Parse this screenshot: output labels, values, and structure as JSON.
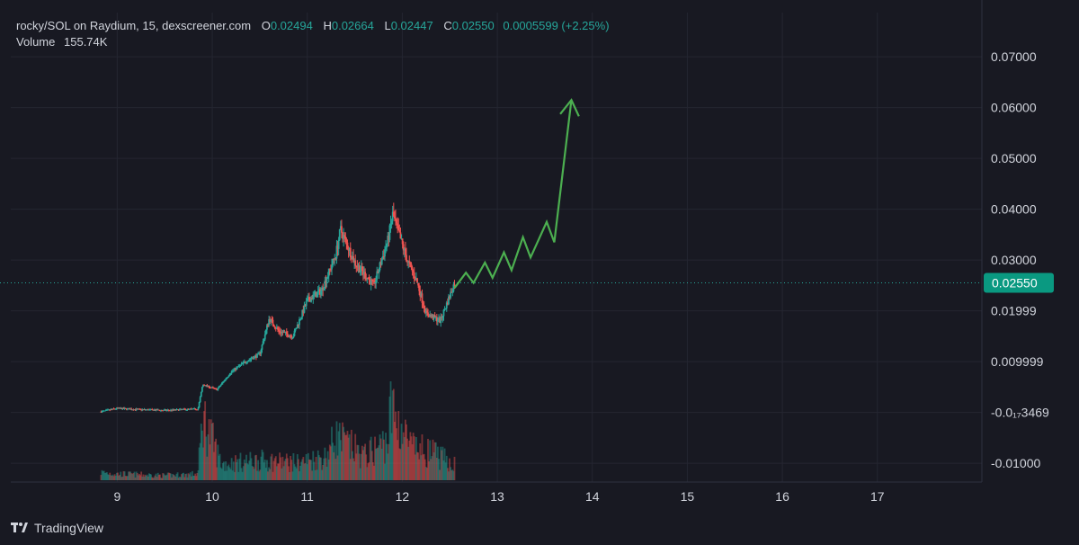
{
  "legend": {
    "symbol": "rocky/SOL on Raydium, 15, dexscreener.com",
    "o_label": "O",
    "o_value": "0.02494",
    "h_label": "H",
    "h_value": "0.02664",
    "l_label": "L",
    "l_value": "0.02447",
    "c_label": "C",
    "c_value": "0.02550",
    "change": "0.0005599 (+2.25%)",
    "volume_label": "Volume",
    "volume_value": "155.74K"
  },
  "footer": {
    "brand": "TradingView",
    "logo_icon": "tradingview-logo-icon"
  },
  "colors": {
    "background": "#181922",
    "grid": "#242631",
    "up": "#26a69a",
    "down": "#ef5350",
    "arrow": "#4caf50",
    "last_price_bg": "#0a9981",
    "axis_text": "#d1d4dc"
  },
  "chart_data": {
    "type": "candlestick",
    "x_tick_labels": [
      "9",
      "10",
      "11",
      "12",
      "13",
      "14",
      "15",
      "16",
      "17"
    ],
    "x_ticks": [
      9,
      10,
      11,
      12,
      13,
      14,
      15,
      16,
      17
    ],
    "xlim": [
      7.88,
      18.1
    ],
    "y_tick_labels": [
      "0.07000",
      "0.06000",
      "0.05000",
      "0.04000",
      "0.03000",
      "0.01999",
      "0.009999",
      "-0.0₁₇3469",
      "-0.01000"
    ],
    "y_ticks": [
      0.07,
      0.06,
      0.05,
      0.04,
      0.03,
      0.01999,
      0.009999,
      0,
      -0.01
    ],
    "ylim": [
      -0.0137,
      0.0787
    ],
    "last_price": 0.0255,
    "last_price_label": "0.02550",
    "price_path": [
      [
        8.83,
        0.00015
      ],
      [
        9.0,
        0.0008
      ],
      [
        9.2,
        0.0006
      ],
      [
        9.5,
        0.0004
      ],
      [
        9.85,
        0.0007
      ],
      [
        9.9,
        0.0055
      ],
      [
        10.05,
        0.0045
      ],
      [
        10.2,
        0.008
      ],
      [
        10.35,
        0.01
      ],
      [
        10.5,
        0.0115
      ],
      [
        10.6,
        0.0185
      ],
      [
        10.7,
        0.016
      ],
      [
        10.85,
        0.015
      ],
      [
        11.0,
        0.022
      ],
      [
        11.15,
        0.024
      ],
      [
        11.3,
        0.031
      ],
      [
        11.35,
        0.036
      ],
      [
        11.5,
        0.0295
      ],
      [
        11.7,
        0.025
      ],
      [
        11.85,
        0.034
      ],
      [
        11.9,
        0.039
      ],
      [
        12.05,
        0.03
      ],
      [
        12.15,
        0.026
      ],
      [
        12.25,
        0.0195
      ],
      [
        12.4,
        0.018
      ],
      [
        12.55,
        0.0255
      ]
    ],
    "volume_path": [
      [
        8.83,
        0.1
      ],
      [
        9.0,
        0.08
      ],
      [
        9.5,
        0.06
      ],
      [
        9.85,
        0.08
      ],
      [
        9.9,
        0.8
      ],
      [
        10.1,
        0.2
      ],
      [
        10.5,
        0.25
      ],
      [
        10.9,
        0.22
      ],
      [
        11.2,
        0.3
      ],
      [
        11.3,
        0.55
      ],
      [
        11.6,
        0.3
      ],
      [
        11.85,
        0.5
      ],
      [
        11.88,
        0.9
      ],
      [
        12.1,
        0.4
      ],
      [
        12.3,
        0.35
      ],
      [
        12.55,
        0.2
      ]
    ],
    "projection_arrow": [
      [
        12.55,
        0.0245
      ],
      [
        12.67,
        0.0275
      ],
      [
        12.75,
        0.0255
      ],
      [
        12.87,
        0.0295
      ],
      [
        12.95,
        0.0265
      ],
      [
        13.07,
        0.0315
      ],
      [
        13.15,
        0.028
      ],
      [
        13.27,
        0.0345
      ],
      [
        13.35,
        0.0305
      ],
      [
        13.52,
        0.0375
      ],
      [
        13.6,
        0.0335
      ],
      [
        13.78,
        0.0615
      ]
    ]
  }
}
